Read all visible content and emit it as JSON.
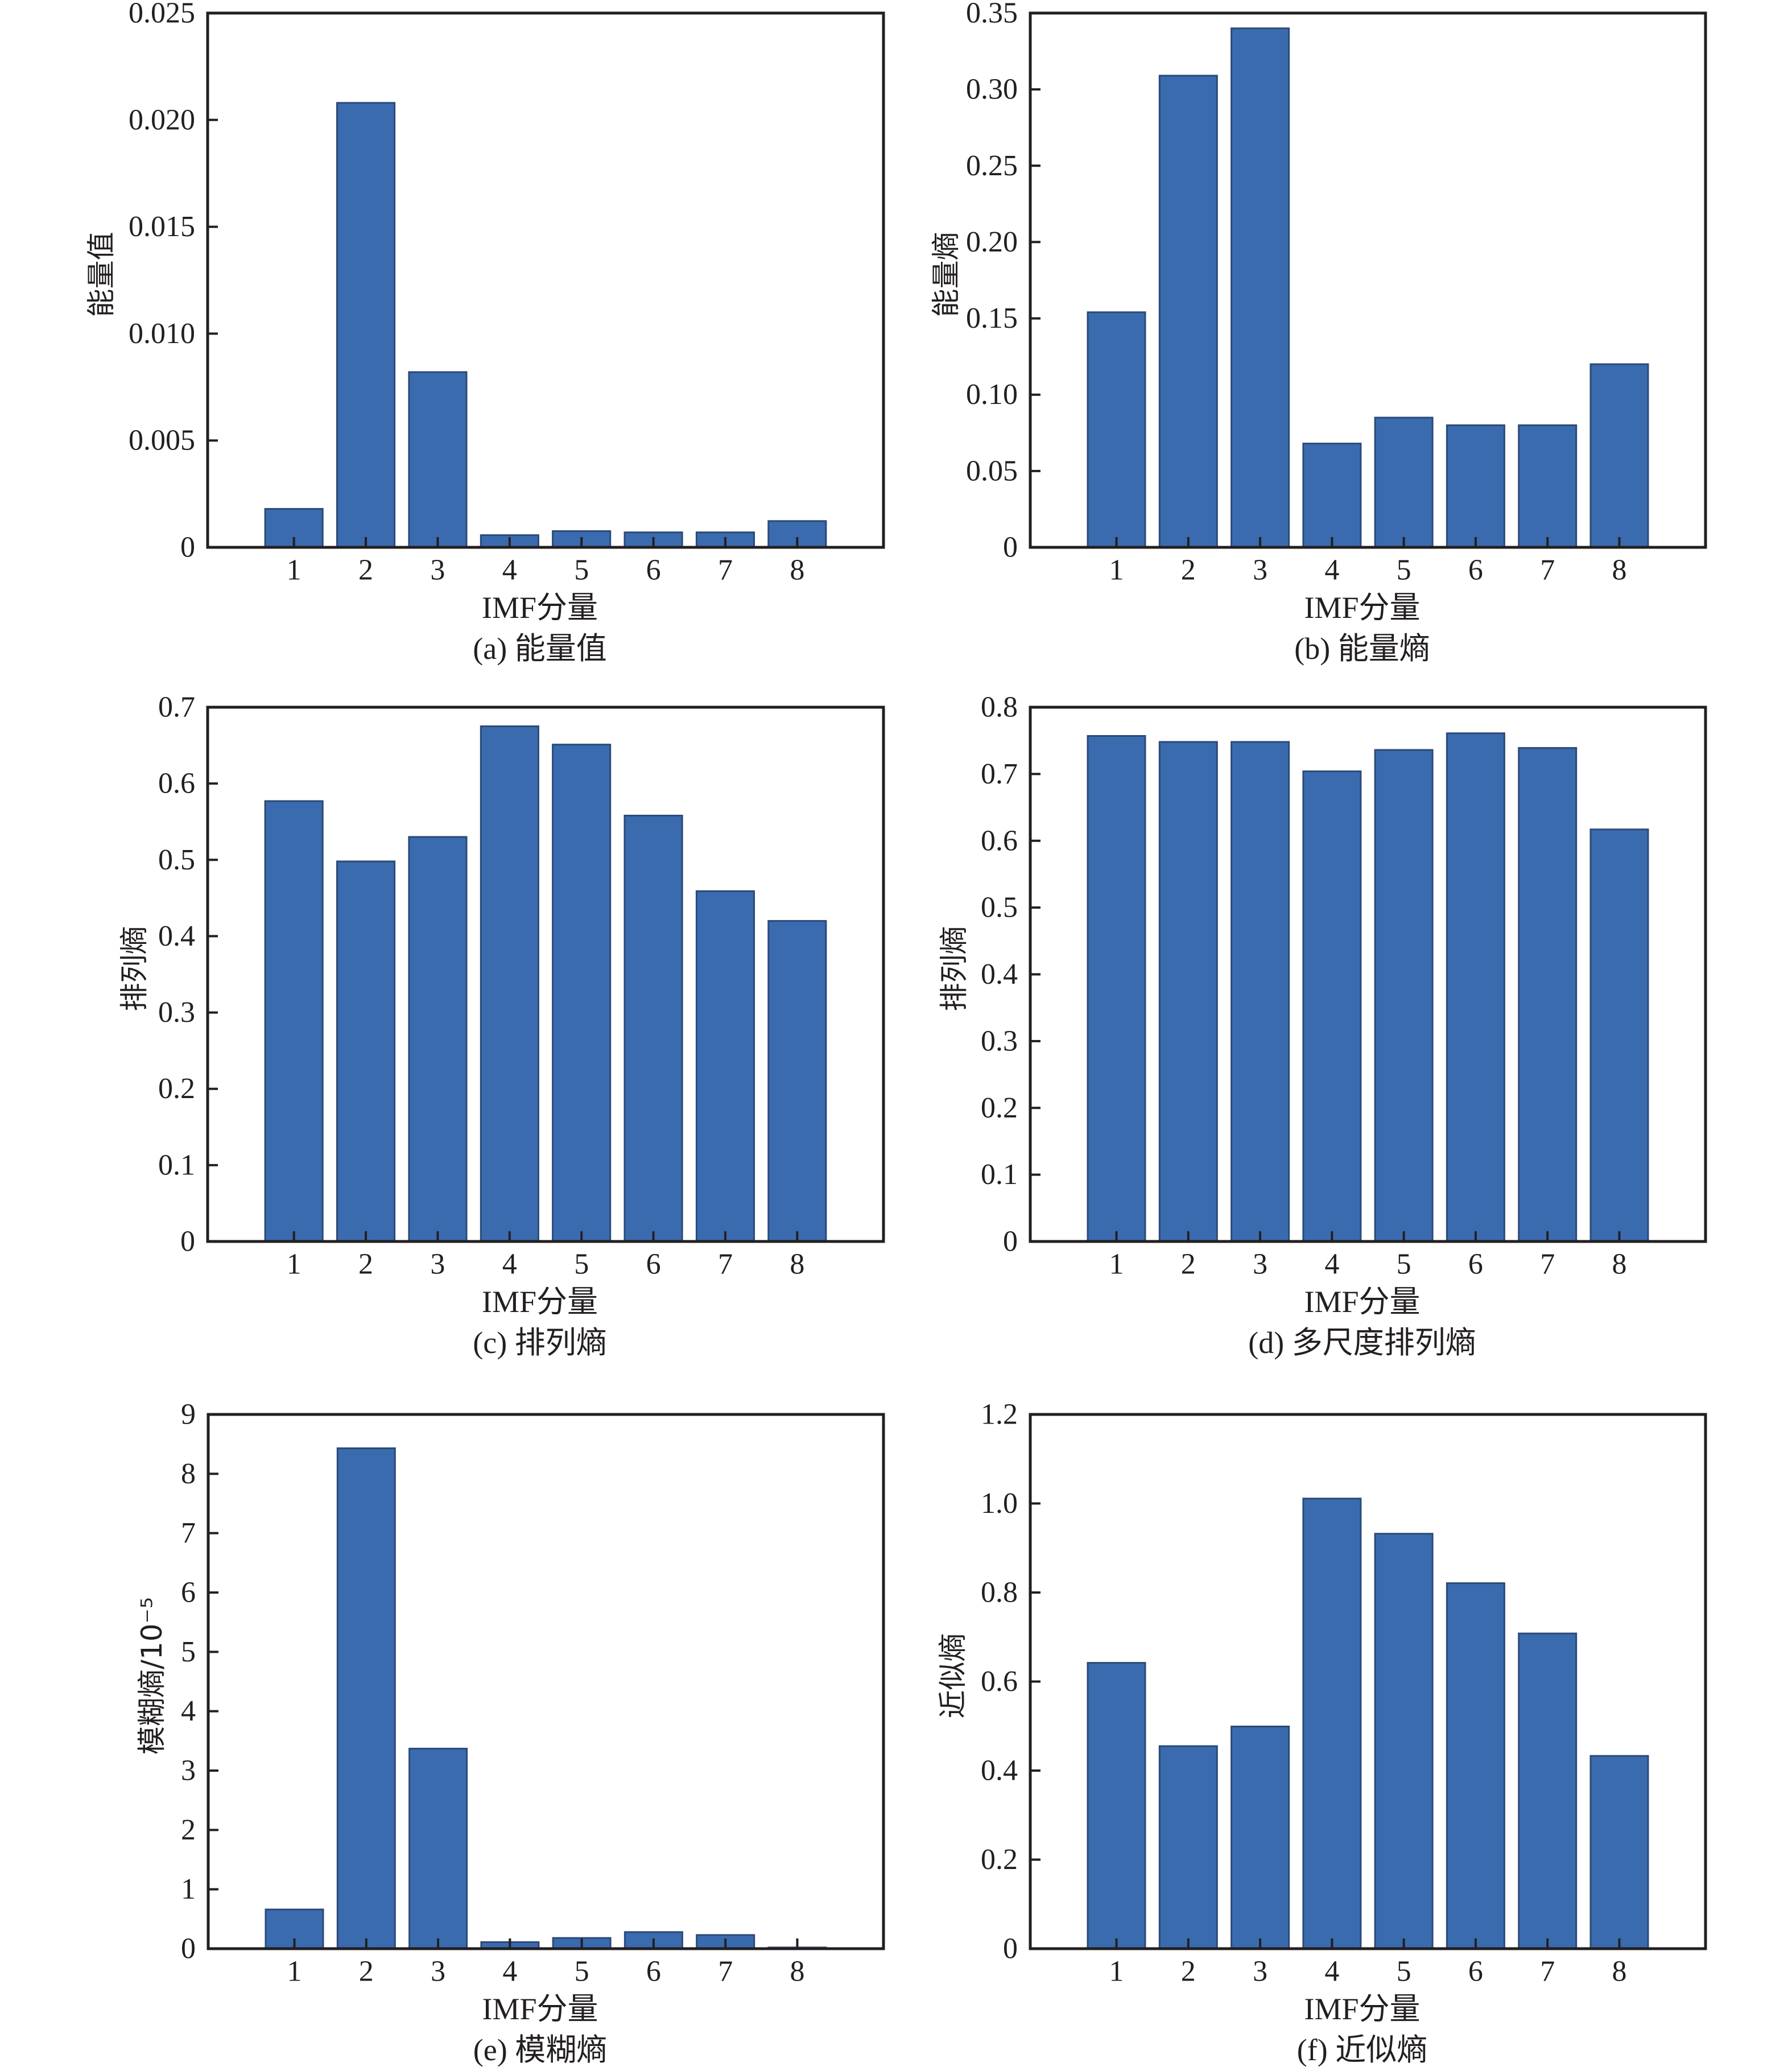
{
  "figure": {
    "colors": {
      "bar_fill": "#3a6baf",
      "bar_edge": "#2b4a78",
      "axis": "#231f20",
      "background": "#ffffff"
    }
  },
  "chart_data": [
    {
      "id": "a",
      "type": "bar",
      "caption": "(a) 能量值",
      "xlabel": "IMF分量",
      "ylabel": "能量值",
      "categories": [
        "1",
        "2",
        "3",
        "4",
        "5",
        "6",
        "7",
        "8"
      ],
      "x": [
        1,
        2,
        3,
        4,
        5,
        6,
        7,
        8
      ],
      "values": [
        0.0018,
        0.0208,
        0.0082,
        0.00057,
        0.00076,
        0.0007,
        0.0007,
        0.00123
      ],
      "xlim": [
        -0.2,
        9.2
      ],
      "ylim": [
        0,
        0.025
      ],
      "yticks": [
        0,
        0.005,
        0.01,
        0.015,
        0.02,
        0.025
      ],
      "ytick_labels": [
        "0",
        "0.005",
        "0.010",
        "0.015",
        "0.020",
        "0.025"
      ],
      "grid": false,
      "legend": "none"
    },
    {
      "id": "b",
      "type": "bar",
      "caption": "(b) 能量熵",
      "xlabel": "IMF分量",
      "ylabel": "能量熵",
      "categories": [
        "1",
        "2",
        "3",
        "4",
        "5",
        "6",
        "7",
        "8"
      ],
      "x": [
        1,
        2,
        3,
        4,
        5,
        6,
        7,
        8
      ],
      "values": [
        0.154,
        0.309,
        0.34,
        0.068,
        0.085,
        0.08,
        0.08,
        0.12
      ],
      "xlim": [
        -0.2,
        9.2
      ],
      "ylim": [
        0,
        0.35
      ],
      "yticks": [
        0,
        0.05,
        0.1,
        0.15,
        0.2,
        0.25,
        0.3,
        0.35
      ],
      "ytick_labels": [
        "0",
        "0.05",
        "0.10",
        "0.15",
        "0.20",
        "0.25",
        "0.30",
        "0.35"
      ],
      "grid": false,
      "legend": "none"
    },
    {
      "id": "c",
      "type": "bar",
      "caption": "(c) 排列熵",
      "xlabel": "IMF分量",
      "ylabel": "排列熵",
      "categories": [
        "1",
        "2",
        "3",
        "4",
        "5",
        "6",
        "7",
        "8"
      ],
      "x": [
        1,
        2,
        3,
        4,
        5,
        6,
        7,
        8
      ],
      "values": [
        0.577,
        0.498,
        0.53,
        0.675,
        0.651,
        0.558,
        0.459,
        0.42
      ],
      "xlim": [
        -0.2,
        9.2
      ],
      "ylim": [
        0,
        0.7
      ],
      "yticks": [
        0,
        0.1,
        0.2,
        0.3,
        0.4,
        0.5,
        0.6,
        0.7
      ],
      "ytick_labels": [
        "0",
        "0.1",
        "0.2",
        "0.3",
        "0.4",
        "0.5",
        "0.6",
        "0.7"
      ],
      "grid": false,
      "legend": "none"
    },
    {
      "id": "d",
      "type": "bar",
      "caption": "(d) 多尺度排列熵",
      "xlabel": "IMF分量",
      "ylabel": "排列熵",
      "categories": [
        "1",
        "2",
        "3",
        "4",
        "5",
        "6",
        "7",
        "8"
      ],
      "x": [
        1,
        2,
        3,
        4,
        5,
        6,
        7,
        8
      ],
      "values": [
        0.757,
        0.748,
        0.748,
        0.704,
        0.736,
        0.761,
        0.739,
        0.617
      ],
      "xlim": [
        -0.2,
        9.2
      ],
      "ylim": [
        0,
        0.8
      ],
      "yticks": [
        0,
        0.1,
        0.2,
        0.3,
        0.4,
        0.5,
        0.6,
        0.7,
        0.8
      ],
      "ytick_labels": [
        "0",
        "0.1",
        "0.2",
        "0.3",
        "0.4",
        "0.5",
        "0.6",
        "0.7",
        "0.8"
      ],
      "grid": false,
      "legend": "none"
    },
    {
      "id": "e",
      "type": "bar",
      "caption": "(e) 模糊熵",
      "xlabel": "IMF分量",
      "ylabel": "模糊熵/10⁻⁵",
      "categories": [
        "1",
        "2",
        "3",
        "4",
        "5",
        "6",
        "7",
        "8"
      ],
      "x": [
        1,
        2,
        3,
        4,
        5,
        6,
        7,
        8
      ],
      "values": [
        0.66,
        8.43,
        3.37,
        0.11,
        0.18,
        0.28,
        0.23,
        0.02
      ],
      "xlim": [
        -0.2,
        9.2
      ],
      "ylim": [
        0,
        9
      ],
      "yticks": [
        0,
        1,
        2,
        3,
        4,
        5,
        6,
        7,
        8,
        9
      ],
      "ytick_labels": [
        "0",
        "1",
        "2",
        "3",
        "4",
        "5",
        "6",
        "7",
        "8",
        "9"
      ],
      "grid": false,
      "legend": "none"
    },
    {
      "id": "f",
      "type": "bar",
      "caption": "(f) 近似熵",
      "xlabel": "IMF分量",
      "ylabel": "近似熵",
      "categories": [
        "1",
        "2",
        "3",
        "4",
        "5",
        "6",
        "7",
        "8"
      ],
      "x": [
        1,
        2,
        3,
        4,
        5,
        6,
        7,
        8
      ],
      "values": [
        0.642,
        0.455,
        0.499,
        1.011,
        0.932,
        0.821,
        0.708,
        0.433
      ],
      "xlim": [
        -0.2,
        9.2
      ],
      "ylim": [
        0,
        1.2
      ],
      "yticks": [
        0,
        0.2,
        0.4,
        0.6,
        0.8,
        1.0,
        1.2
      ],
      "ytick_labels": [
        "0",
        "0.2",
        "0.4",
        "0.6",
        "0.8",
        "1.0",
        "1.2"
      ],
      "grid": false,
      "legend": "none"
    }
  ]
}
